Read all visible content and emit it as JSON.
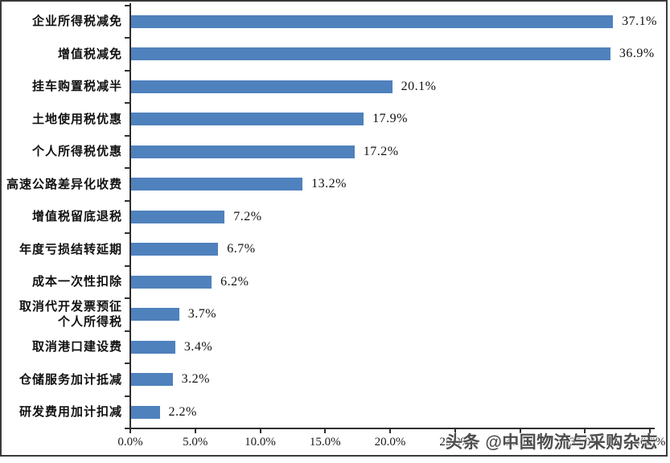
{
  "chart_data": {
    "type": "bar",
    "orientation": "horizontal",
    "title": "",
    "xlabel": "",
    "ylabel": "",
    "categories": [
      "企业所得税减免",
      "增值税减免",
      "挂车购置税减半",
      "土地使用税优惠",
      "个人所得税优惠",
      "高速公路差异化收费",
      "增值税留底退税",
      "年度亏损结转延期",
      "成本一次性扣除",
      "取消代开发票预征\n个人所得税",
      "取消港口建设费",
      "仓储服务加计抵减",
      "研发费用加计扣减"
    ],
    "values": [
      37.1,
      36.9,
      20.1,
      17.9,
      17.2,
      13.2,
      7.2,
      6.7,
      6.2,
      3.7,
      3.4,
      3.2,
      2.2
    ],
    "value_labels": [
      "37.1%",
      "36.9%",
      "20.1%",
      "17.9%",
      "17.2%",
      "13.2%",
      "7.2%",
      "6.7%",
      "6.2%",
      "3.7%",
      "3.4%",
      "3.2%",
      "2.2%"
    ],
    "xlim": [
      0,
      40
    ],
    "x_tick_step": 5,
    "x_tick_labels": [
      "0.0%",
      "5.0%",
      "10.0%",
      "15.0%",
      "20.0%",
      "25.0%",
      "30.0%",
      "35.0%",
      "40.0%"
    ],
    "grid": false,
    "legend": false,
    "bar_color": "#4F81BD",
    "axis_color": "#2f2f2f"
  },
  "watermark": {
    "text": "头条 @中国物流与采购杂志"
  }
}
